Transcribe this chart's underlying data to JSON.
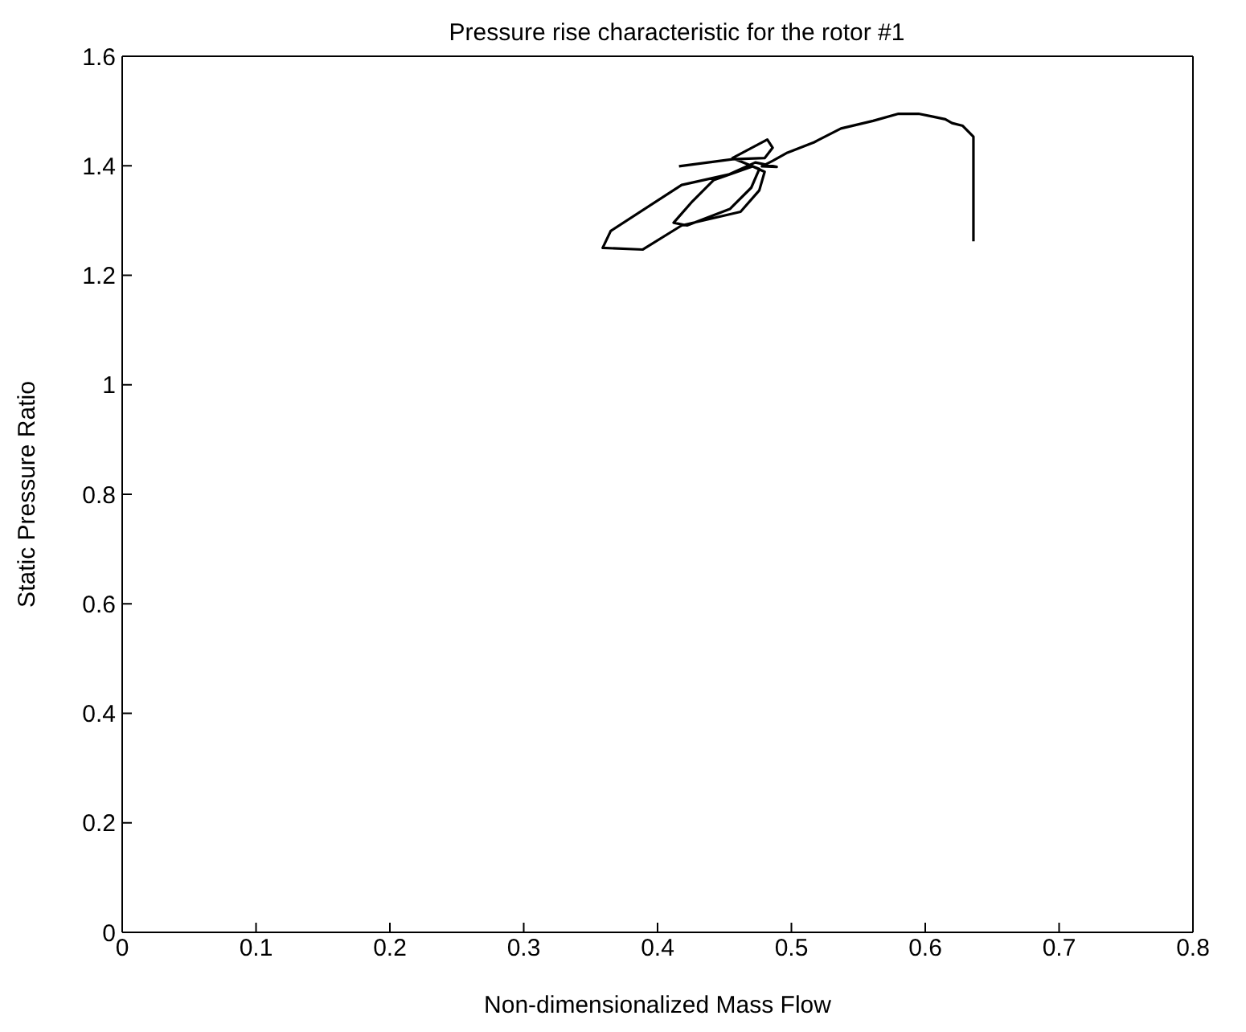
{
  "chart_data": {
    "type": "line",
    "title": "Pressure rise characteristic for the rotor #1",
    "xlabel": "Non-dimensionalized Mass Flow",
    "ylabel": "Static Pressure Ratio",
    "xlim": [
      0,
      0.8
    ],
    "xticks": [
      0,
      0.1,
      0.2,
      0.3,
      0.4,
      0.5,
      0.6,
      0.7,
      0.8
    ],
    "ylim": [
      0,
      1.6
    ],
    "yticks": [
      0,
      0.2,
      0.4,
      0.6,
      0.8,
      1,
      1.2,
      1.4,
      1.6
    ],
    "marker": "none",
    "line_style": "solid",
    "series": [
      {
        "color": "#000000",
        "x": [
          0.636,
          0.636,
          0.628,
          0.62,
          0.615,
          0.605,
          0.595,
          0.58,
          0.561,
          0.537,
          0.517,
          0.497,
          0.486,
          0.478,
          0.489,
          0.473,
          0.453,
          0.418,
          0.365,
          0.359,
          0.389,
          0.418,
          0.462,
          0.476,
          0.48,
          0.471,
          0.442,
          0.426,
          0.412,
          0.422,
          0.454,
          0.47,
          0.476,
          0.456,
          0.482,
          0.486,
          0.48,
          0.456,
          0.416
        ],
        "values": [
          1.262,
          1.453,
          1.473,
          1.478,
          1.485,
          1.49,
          1.495,
          1.495,
          1.482,
          1.468,
          1.443,
          1.424,
          1.409,
          1.399,
          1.398,
          1.406,
          1.384,
          1.365,
          1.281,
          1.25,
          1.247,
          1.291,
          1.316,
          1.355,
          1.389,
          1.399,
          1.374,
          1.335,
          1.296,
          1.291,
          1.321,
          1.36,
          1.394,
          1.414,
          1.448,
          1.433,
          1.414,
          1.412,
          1.399
        ]
      }
    ]
  }
}
